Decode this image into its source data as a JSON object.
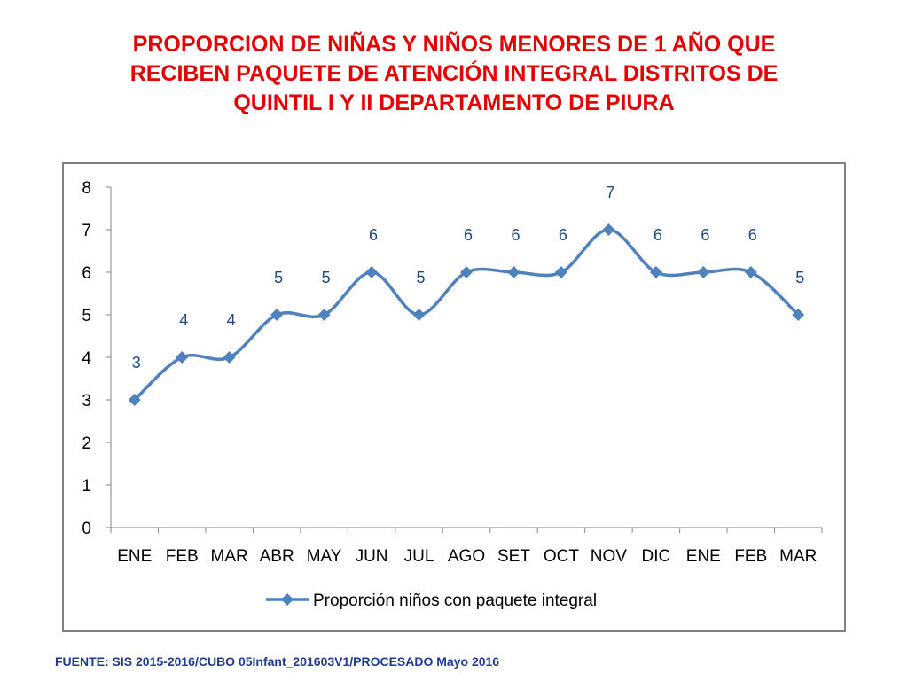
{
  "title_lines": [
    "PROPORCION DE NIÑAS Y NIÑOS MENORES DE 1 AÑO QUE",
    "RECIBEN PAQUETE DE ATENCIÓN INTEGRAL  DISTRITOS DE",
    "QUINTIL I Y II DEPARTAMENTO DE PIURA"
  ],
  "source_note": "FUENTE: SIS 2015-2016/CUBO 05Infant_201603V1/PROCESADO Mayo 2016",
  "colors": {
    "title": "#e60000",
    "series": "#4f81bd",
    "data_label": "#1f497d",
    "source": "#1f3a93"
  },
  "chart_data": {
    "type": "line",
    "title": "",
    "xlabel": "",
    "ylabel": "",
    "categories": [
      "ENE",
      "FEB",
      "MAR",
      "ABR",
      "MAY",
      "JUN",
      "JUL",
      "AGO",
      "SET",
      "OCT",
      "NOV",
      "DIC",
      "ENE",
      "FEB",
      "MAR"
    ],
    "series": [
      {
        "name": "Proporción niños con paquete integral",
        "values": [
          3,
          4,
          4,
          5,
          5,
          6,
          5,
          6,
          6,
          6,
          7,
          6,
          6,
          6,
          5
        ],
        "marker": "diamond",
        "smooth": true
      }
    ],
    "ylim": [
      0,
      8
    ],
    "yticks": [
      0,
      1,
      2,
      3,
      4,
      5,
      6,
      7,
      8
    ],
    "grid": false,
    "legend_position": "bottom",
    "data_labels": [
      "3",
      "4",
      "4",
      "5",
      "5",
      "6",
      "5",
      "6",
      "6",
      "6",
      "7",
      "6",
      "6",
      "6",
      "5"
    ]
  }
}
